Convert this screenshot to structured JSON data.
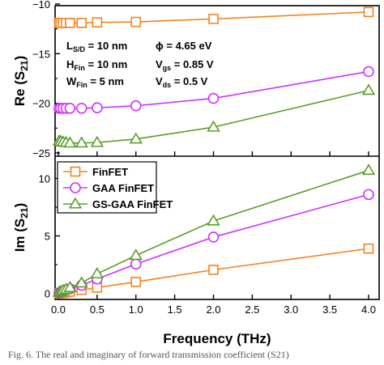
{
  "chart_data": [
    {
      "type": "line",
      "panel": "top",
      "ylabel": "Re (S",
      "ylabel_sub": "21",
      "ylabel_end": ")",
      "ylim": [
        -25,
        -10
      ],
      "xlim": [
        0,
        4
      ],
      "yticks": [
        -25,
        -20,
        -15,
        -10
      ],
      "ytick_labels": [
        "−25",
        "−20",
        "−15",
        "−10"
      ],
      "annotations": [
        {
          "main": "L",
          "sub": "S/D",
          "rest": " = 10 nm"
        },
        {
          "main": "H",
          "sub": "Fin",
          "rest": " = 10 nm"
        },
        {
          "main": "W",
          "sub": "Fin",
          "rest": " = 5 nm"
        },
        {
          "main": "ϕ",
          "sub": "",
          "rest": " = 4.65 eV"
        },
        {
          "main": "V",
          "sub": "gs",
          "rest": " = 0.85 V"
        },
        {
          "main": "V",
          "sub": "ds",
          "rest": " = 0.5 V"
        }
      ],
      "series": [
        {
          "name": "FinFET",
          "color": "#f5821f",
          "marker": "square",
          "x": [
            0.01,
            0.03,
            0.06,
            0.1,
            0.15,
            0.3,
            0.5,
            1,
            2,
            4
          ],
          "y": [
            -11.9,
            -11.9,
            -11.9,
            -11.9,
            -11.9,
            -11.9,
            -11.85,
            -11.8,
            -11.5,
            -10.8
          ]
        },
        {
          "name": "GAA FinFET",
          "color": "#cc33ff",
          "marker": "circle",
          "x": [
            0.01,
            0.03,
            0.06,
            0.1,
            0.15,
            0.3,
            0.5,
            1,
            2,
            4
          ],
          "y": [
            -20.5,
            -20.5,
            -20.5,
            -20.5,
            -20.5,
            -20.5,
            -20.45,
            -20.25,
            -19.5,
            -16.8
          ]
        },
        {
          "name": "GS-GAA FinFET",
          "color": "#5a9e2a",
          "marker": "triangle",
          "x": [
            0.01,
            0.03,
            0.06,
            0.1,
            0.15,
            0.3,
            0.5,
            1,
            2,
            4
          ],
          "y": [
            -23.8,
            -23.85,
            -23.9,
            -23.95,
            -24.0,
            -24.0,
            -23.95,
            -23.6,
            -22.4,
            -18.7
          ]
        }
      ]
    },
    {
      "type": "line",
      "panel": "bottom",
      "ylabel": "Im (S",
      "ylabel_sub": "21",
      "ylabel_end": ")",
      "xlabel": "Frequency (THz)",
      "xlim": [
        0,
        4
      ],
      "ylim": [
        -0.6,
        11.8
      ],
      "yticks": [
        0,
        5,
        10
      ],
      "xticks": [
        0.0,
        0.5,
        1.0,
        1.5,
        2.0,
        2.5,
        3.0,
        3.5,
        4.0
      ],
      "xtick_labels": [
        "0.0",
        "0.5",
        "1.0",
        "1.5",
        "2.0",
        "2.5",
        "3.0",
        "3.5",
        "4.0"
      ],
      "legend": "top-left",
      "series": [
        {
          "name": "FinFET",
          "color": "#f5821f",
          "marker": "square",
          "x": [
            0.01,
            0.03,
            0.06,
            0.1,
            0.15,
            0.3,
            0.5,
            1,
            2,
            4
          ],
          "y": [
            0.0,
            0.02,
            0.05,
            0.1,
            0.15,
            0.3,
            0.5,
            1.0,
            2.05,
            3.9
          ]
        },
        {
          "name": "GAA FinFET",
          "color": "#cc33ff",
          "marker": "circle",
          "x": [
            0.01,
            0.03,
            0.06,
            0.1,
            0.15,
            0.3,
            0.5,
            1,
            2,
            4
          ],
          "y": [
            0.05,
            0.1,
            0.2,
            0.3,
            0.4,
            0.7,
            1.25,
            2.55,
            4.9,
            8.6
          ]
        },
        {
          "name": "GS-GAA FinFET",
          "color": "#5a9e2a",
          "marker": "triangle",
          "x": [
            0.01,
            0.03,
            0.06,
            0.1,
            0.15,
            0.3,
            0.5,
            1,
            2,
            4
          ],
          "y": [
            0.1,
            0.15,
            0.25,
            0.35,
            0.5,
            0.9,
            1.7,
            3.3,
            6.3,
            10.7
          ]
        }
      ]
    }
  ],
  "caption": "Fig. 6. The real and imaginary of forward transmission coefficient (S21)"
}
